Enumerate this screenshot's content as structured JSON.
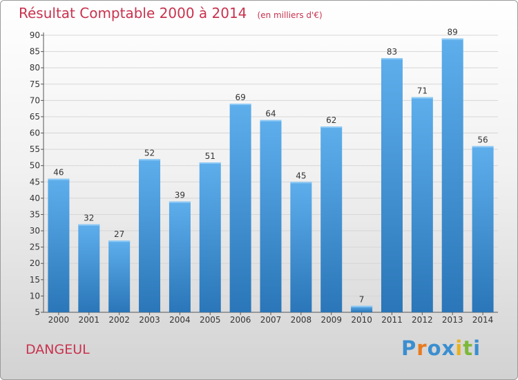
{
  "chart_data": {
    "type": "bar",
    "title": "Résultat Comptable 2000 à 2014",
    "subtitle": "(en milliers d'€)",
    "categories": [
      "2000",
      "2001",
      "2002",
      "2003",
      "2004",
      "2005",
      "2006",
      "2007",
      "2008",
      "2009",
      "2010",
      "2011",
      "2012",
      "2013",
      "2014"
    ],
    "values": [
      46,
      32,
      27,
      52,
      39,
      51,
      69,
      64,
      45,
      62,
      7,
      83,
      71,
      89,
      56
    ],
    "xlabel": "",
    "ylabel": "",
    "ylim": [
      5,
      90
    ],
    "yticks": [
      5,
      10,
      15,
      20,
      25,
      30,
      35,
      40,
      45,
      50,
      55,
      60,
      65,
      70,
      75,
      80,
      85,
      90
    ],
    "grid": true,
    "colors": {
      "bar_top": "#5eaeec",
      "bar_bottom": "#2a76b8",
      "grid": "#d6d6d6"
    }
  },
  "labels": {
    "city": "DANGEUL"
  },
  "logo": {
    "letters": [
      "P",
      "r",
      "o",
      "x",
      "i",
      "t",
      "i"
    ],
    "colors": [
      "#3b8ed0",
      "#e87a1e",
      "#3b8ed0",
      "#3b8ed0",
      "#e8b21e",
      "#7db83a",
      "#3b8ed0"
    ]
  }
}
